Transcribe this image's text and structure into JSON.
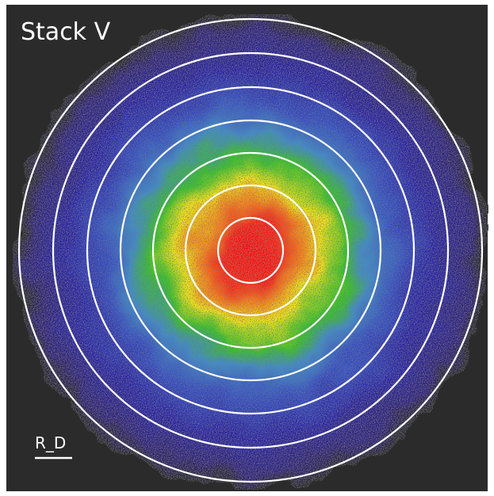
{
  "title": "Stack V",
  "scale_bar": {
    "label": "R_D"
  }
}
